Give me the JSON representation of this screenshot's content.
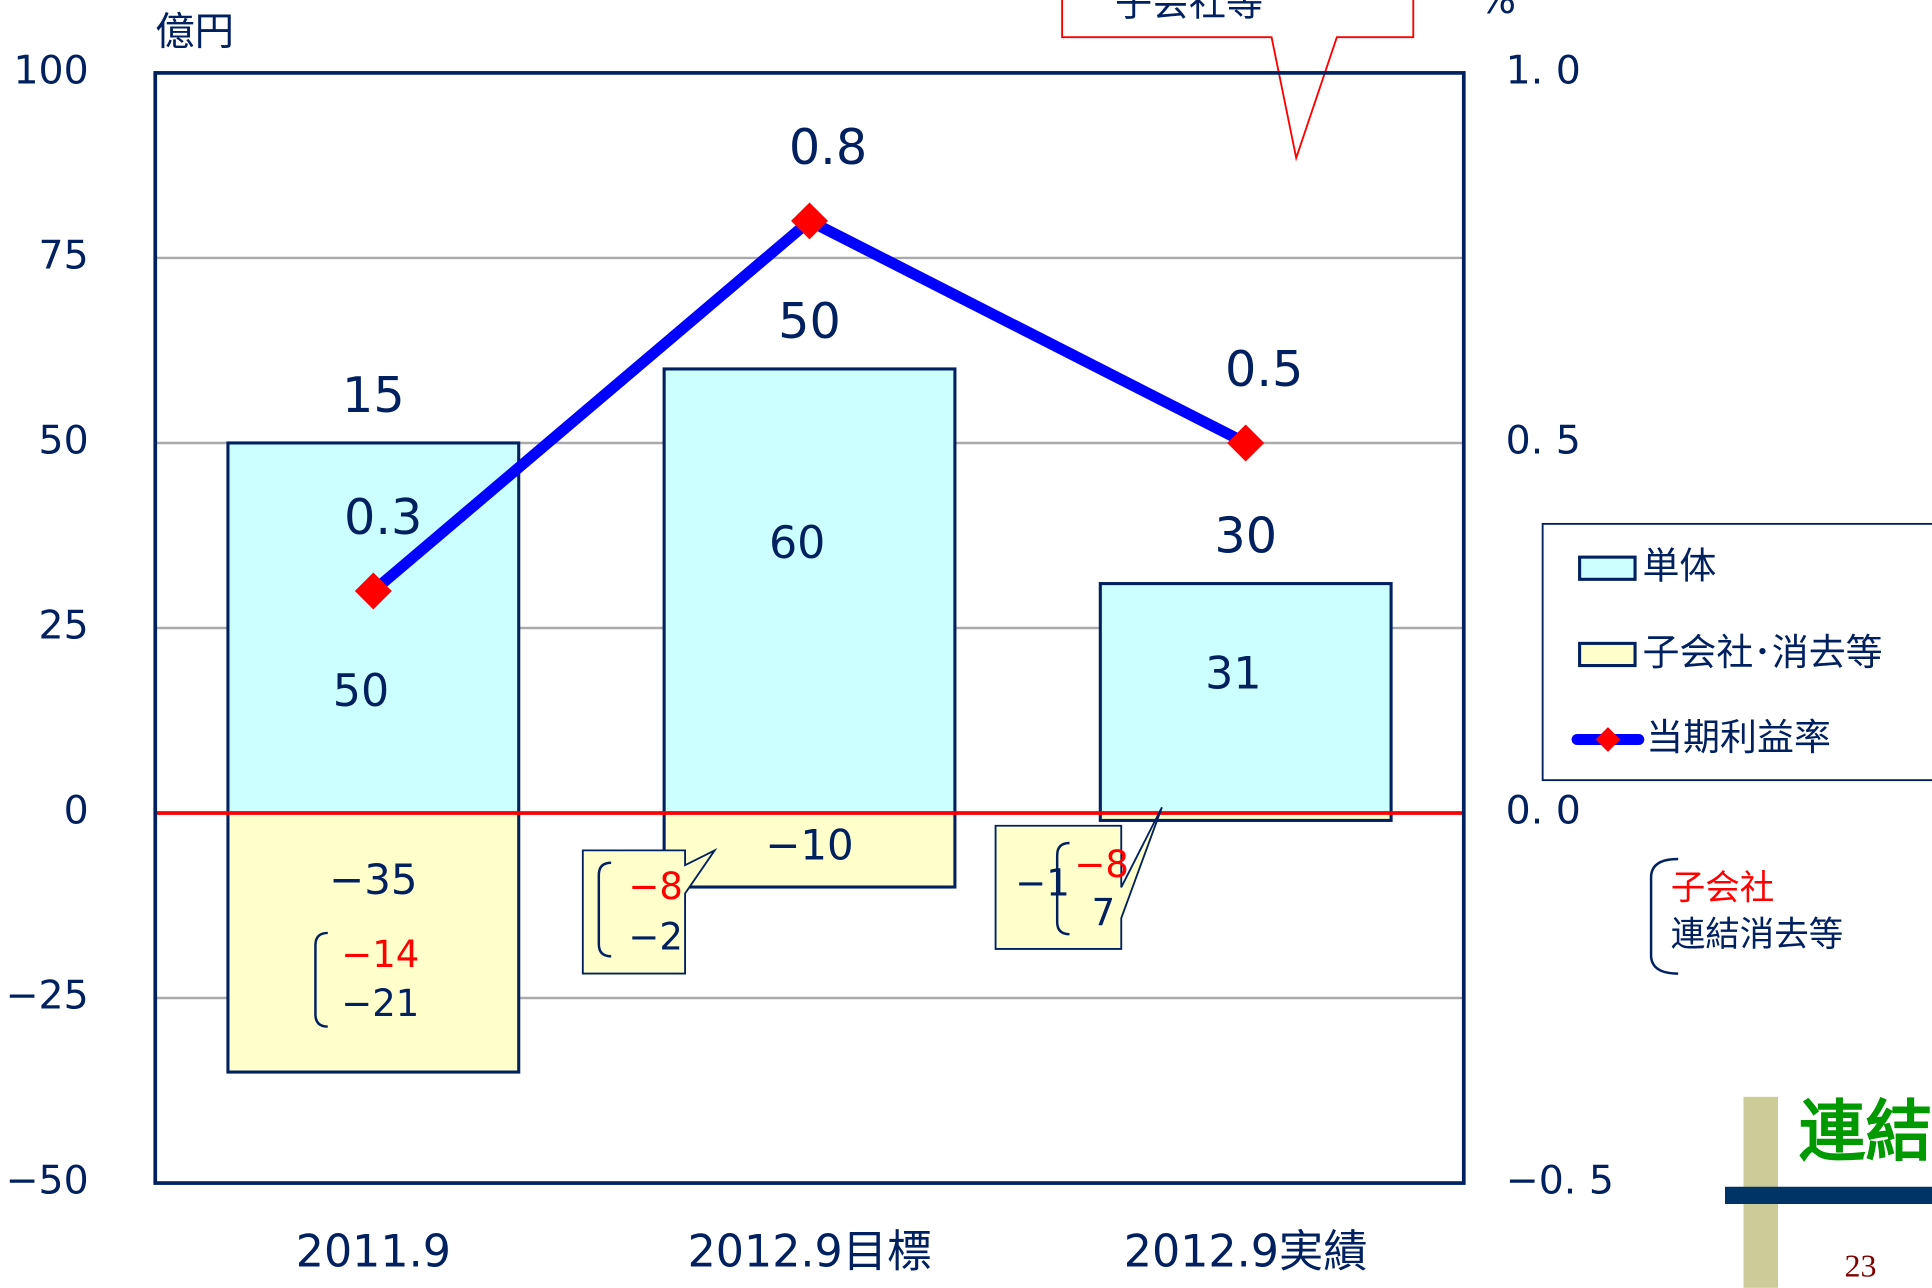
{
  "chart_data": {
    "type": "bar",
    "stacked": true,
    "y_label": "億円",
    "y2_label": "%",
    "categories": [
      "2011.9",
      "2012.9目標",
      "2012.9実績"
    ],
    "series": [
      {
        "name": "単体",
        "color": "#ccffff",
        "values": [
          50,
          60,
          31
        ]
      },
      {
        "name": "子会社･消去等",
        "color": "#ffffcc",
        "values": [
          -35,
          -10,
          -1
        ],
        "value_labels": [
          "−35",
          "−10",
          "−1"
        ]
      },
      {
        "name": "当期利益率",
        "type": "line",
        "axis": "y2",
        "color": "#0000ff",
        "marker_color": "#ff0000",
        "values": [
          0.3,
          0.8,
          0.5
        ]
      }
    ],
    "totals": [
      15,
      50,
      30
    ],
    "breakdowns": [
      {
        "values": [
          -14,
          -21
        ],
        "labels": [
          "−14",
          "−21"
        ]
      },
      {
        "values": [
          -8,
          -2
        ],
        "labels": [
          "−8",
          "−2"
        ]
      },
      {
        "values": [
          -8,
          7
        ],
        "labels": [
          "−8",
          "7"
        ]
      }
    ],
    "ylim": [
      -50,
      100
    ],
    "yticks": [
      {
        "value": -50,
        "label": "−50"
      },
      {
        "value": -25,
        "label": "−25"
      },
      0,
      25,
      50,
      75,
      100
    ],
    "y2lim": [
      -0.5,
      1.0
    ],
    "y2ticks": [
      {
        "value": -0.5,
        "label": "−0. 5"
      },
      {
        "value": 0,
        "label": "0. 0"
      },
      {
        "value": 0.5,
        "label": "0. 5"
      },
      {
        "value": 1,
        "label": "1. 0"
      }
    ],
    "grid": true,
    "legend": "right",
    "callout_text": "子会社等",
    "side_note": [
      "子会社",
      "連結消去等"
    ],
    "section_title": "連結",
    "page_number": "23"
  }
}
